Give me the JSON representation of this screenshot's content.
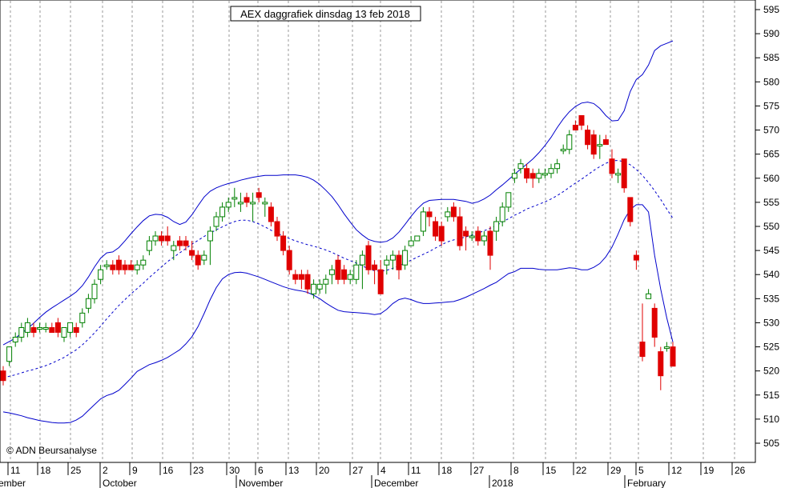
{
  "chart_data": {
    "type": "candlestick",
    "title": "AEX daggrafiek dinsdag 13 feb 2018",
    "copyright": "© ADN Beursanalyse",
    "ylim": [
      500,
      598
    ],
    "y_ticks": [
      505,
      510,
      515,
      520,
      525,
      530,
      535,
      540,
      545,
      550,
      555,
      560,
      565,
      570,
      575,
      580,
      585,
      590,
      595
    ],
    "x_tick_labels": [
      "11",
      "18",
      "25",
      "2",
      "9",
      "16",
      "23",
      "30",
      "6",
      "13",
      "20",
      "27",
      "4",
      "11",
      "18",
      "27",
      "8",
      "15",
      "22",
      "29",
      "5",
      "12",
      "19",
      "26"
    ],
    "month_labels": [
      "ember",
      "October",
      "November",
      "December",
      "2018",
      "February"
    ],
    "colors": {
      "up": "#008000",
      "down": "#e00000",
      "band": "#0000cc",
      "grid": "#999999"
    },
    "candles": [
      {
        "o": 520,
        "h": 521,
        "l": 517,
        "c": 518
      },
      {
        "o": 522,
        "h": 525,
        "l": 521,
        "c": 525
      },
      {
        "o": 526,
        "h": 528,
        "l": 525,
        "c": 527
      },
      {
        "o": 527,
        "h": 530,
        "l": 526,
        "c": 529
      },
      {
        "o": 528,
        "h": 531,
        "l": 527,
        "c": 530
      },
      {
        "o": 529,
        "h": 530,
        "l": 527,
        "c": 528
      },
      {
        "o": 529,
        "h": 530,
        "l": 528,
        "c": 529
      },
      {
        "o": 529,
        "h": 530,
        "l": 528,
        "c": 529
      },
      {
        "o": 529,
        "h": 530,
        "l": 528,
        "c": 528
      },
      {
        "o": 530,
        "h": 531,
        "l": 527,
        "c": 528
      },
      {
        "o": 527,
        "h": 529,
        "l": 526,
        "c": 529
      },
      {
        "o": 528,
        "h": 530,
        "l": 527,
        "c": 530
      },
      {
        "o": 529,
        "h": 530,
        "l": 527,
        "c": 528
      },
      {
        "o": 530,
        "h": 533,
        "l": 529,
        "c": 532
      },
      {
        "o": 533,
        "h": 536,
        "l": 532,
        "c": 535
      },
      {
        "o": 535,
        "h": 539,
        "l": 534,
        "c": 538
      },
      {
        "o": 539,
        "h": 542,
        "l": 538,
        "c": 541
      },
      {
        "o": 542,
        "h": 543,
        "l": 541,
        "c": 542
      },
      {
        "o": 542,
        "h": 543,
        "l": 540,
        "c": 541
      },
      {
        "o": 543,
        "h": 544,
        "l": 540,
        "c": 541
      },
      {
        "o": 542,
        "h": 543,
        "l": 540,
        "c": 541
      },
      {
        "o": 542,
        "h": 543,
        "l": 541,
        "c": 541
      },
      {
        "o": 541,
        "h": 543,
        "l": 540,
        "c": 542
      },
      {
        "o": 542,
        "h": 544,
        "l": 541,
        "c": 543
      },
      {
        "o": 545,
        "h": 548,
        "l": 544,
        "c": 547
      },
      {
        "o": 547,
        "h": 549,
        "l": 546,
        "c": 548
      },
      {
        "o": 548,
        "h": 549,
        "l": 546,
        "c": 547
      },
      {
        "o": 548,
        "h": 550,
        "l": 546,
        "c": 547
      },
      {
        "o": 545,
        "h": 547,
        "l": 543,
        "c": 546
      },
      {
        "o": 547,
        "h": 548,
        "l": 545,
        "c": 546
      },
      {
        "o": 547,
        "h": 548,
        "l": 545,
        "c": 546
      },
      {
        "o": 545,
        "h": 547,
        "l": 543,
        "c": 544
      },
      {
        "o": 544,
        "h": 545,
        "l": 541,
        "c": 542
      },
      {
        "o": 543,
        "h": 545,
        "l": 542,
        "c": 544
      },
      {
        "o": 547,
        "h": 550,
        "l": 542,
        "c": 549
      },
      {
        "o": 550,
        "h": 553,
        "l": 549,
        "c": 552
      },
      {
        "o": 552,
        "h": 555,
        "l": 551,
        "c": 554
      },
      {
        "o": 554,
        "h": 556,
        "l": 553,
        "c": 555
      },
      {
        "o": 556,
        "h": 558,
        "l": 554,
        "c": 556
      },
      {
        "o": 555,
        "h": 557,
        "l": 553,
        "c": 555
      },
      {
        "o": 556,
        "h": 557,
        "l": 554,
        "c": 555
      },
      {
        "o": 555,
        "h": 557,
        "l": 551,
        "c": 555
      },
      {
        "o": 557,
        "h": 558,
        "l": 555,
        "c": 556
      },
      {
        "o": 555,
        "h": 556,
        "l": 552,
        "c": 555
      },
      {
        "o": 554,
        "h": 555,
        "l": 550,
        "c": 551
      },
      {
        "o": 551,
        "h": 552,
        "l": 547,
        "c": 548
      },
      {
        "o": 548,
        "h": 549,
        "l": 544,
        "c": 545
      },
      {
        "o": 545,
        "h": 546,
        "l": 540,
        "c": 541
      },
      {
        "o": 540,
        "h": 541,
        "l": 538,
        "c": 539
      },
      {
        "o": 540,
        "h": 541,
        "l": 537,
        "c": 539
      },
      {
        "o": 540,
        "h": 541,
        "l": 536,
        "c": 537
      },
      {
        "o": 536,
        "h": 539,
        "l": 535,
        "c": 538
      },
      {
        "o": 537,
        "h": 539,
        "l": 536,
        "c": 538
      },
      {
        "o": 538,
        "h": 540,
        "l": 536,
        "c": 539
      },
      {
        "o": 540,
        "h": 542,
        "l": 538,
        "c": 541
      },
      {
        "o": 543,
        "h": 544,
        "l": 538,
        "c": 539
      },
      {
        "o": 541,
        "h": 542,
        "l": 538,
        "c": 539
      },
      {
        "o": 539,
        "h": 541,
        "l": 538,
        "c": 540
      },
      {
        "o": 539,
        "h": 543,
        "l": 538,
        "c": 542
      },
      {
        "o": 542,
        "h": 545,
        "l": 537,
        "c": 544
      },
      {
        "o": 546,
        "h": 547,
        "l": 540,
        "c": 541
      },
      {
        "o": 542,
        "h": 543,
        "l": 538,
        "c": 541
      },
      {
        "o": 541,
        "h": 543,
        "l": 536,
        "c": 536
      },
      {
        "o": 542,
        "h": 544,
        "l": 540,
        "c": 543
      },
      {
        "o": 543,
        "h": 545,
        "l": 541,
        "c": 544
      },
      {
        "o": 544,
        "h": 545,
        "l": 539,
        "c": 541
      },
      {
        "o": 542,
        "h": 546,
        "l": 541,
        "c": 545
      },
      {
        "o": 546,
        "h": 548,
        "l": 546,
        "c": 547
      },
      {
        "o": 547,
        "h": 548,
        "l": 547,
        "c": 548
      },
      {
        "o": 549,
        "h": 554,
        "l": 548,
        "c": 553
      },
      {
        "o": 553,
        "h": 554,
        "l": 550,
        "c": 552
      },
      {
        "o": 551,
        "h": 552,
        "l": 547,
        "c": 548
      },
      {
        "o": 550,
        "h": 551,
        "l": 546,
        "c": 547
      },
      {
        "o": 552,
        "h": 554,
        "l": 551,
        "c": 553
      },
      {
        "o": 554,
        "h": 555,
        "l": 551,
        "c": 552
      },
      {
        "o": 552,
        "h": 554,
        "l": 545,
        "c": 546
      },
      {
        "o": 549,
        "h": 550,
        "l": 545,
        "c": 548
      },
      {
        "o": 548,
        "h": 549,
        "l": 547,
        "c": 548
      },
      {
        "o": 549,
        "h": 550,
        "l": 546,
        "c": 547
      },
      {
        "o": 547,
        "h": 549,
        "l": 546,
        "c": 548
      },
      {
        "o": 549,
        "h": 550,
        "l": 541,
        "c": 544
      },
      {
        "o": 549,
        "h": 552,
        "l": 547,
        "c": 551
      },
      {
        "o": 551,
        "h": 555,
        "l": 550,
        "c": 554
      },
      {
        "o": 554,
        "h": 557,
        "l": 553,
        "c": 557
      },
      {
        "o": 560,
        "h": 562,
        "l": 559,
        "c": 561
      },
      {
        "o": 562,
        "h": 564,
        "l": 561,
        "c": 563
      },
      {
        "o": 562,
        "h": 563,
        "l": 559,
        "c": 560
      },
      {
        "o": 561,
        "h": 562,
        "l": 558,
        "c": 560
      },
      {
        "o": 560,
        "h": 562,
        "l": 559,
        "c": 561
      },
      {
        "o": 561,
        "h": 562,
        "l": 560,
        "c": 561
      },
      {
        "o": 561,
        "h": 563,
        "l": 560,
        "c": 562
      },
      {
        "o": 562,
        "h": 564,
        "l": 561,
        "c": 563
      },
      {
        "o": 566,
        "h": 567,
        "l": 565,
        "c": 566
      },
      {
        "o": 566,
        "h": 570,
        "l": 565,
        "c": 569
      },
      {
        "o": 571,
        "h": 572,
        "l": 570,
        "c": 570
      },
      {
        "o": 573,
        "h": 573,
        "l": 570,
        "c": 571
      },
      {
        "o": 570,
        "h": 571,
        "l": 566,
        "c": 567
      },
      {
        "o": 569,
        "h": 570,
        "l": 564,
        "c": 565
      },
      {
        "o": 567,
        "h": 569,
        "l": 564,
        "c": 567
      },
      {
        "o": 568,
        "h": 569,
        "l": 567,
        "c": 567
      },
      {
        "o": 564,
        "h": 566,
        "l": 560,
        "c": 561
      },
      {
        "o": 561,
        "h": 562,
        "l": 559,
        "c": 561
      },
      {
        "o": 564,
        "h": 564,
        "l": 557,
        "c": 558
      },
      {
        "o": 556,
        "h": 556,
        "l": 550,
        "c": 551
      },
      {
        "o": 544,
        "h": 545,
        "l": 541,
        "c": 543
      },
      {
        "o": 526,
        "h": 534,
        "l": 522,
        "c": 523
      },
      {
        "o": 535,
        "h": 537,
        "l": 535,
        "c": 536
      },
      {
        "o": 533,
        "h": 534,
        "l": 525,
        "c": 527
      },
      {
        "o": 524,
        "h": 525,
        "l": 516,
        "c": 519
      },
      {
        "o": 525,
        "h": 526,
        "l": 524,
        "c": 525
      },
      {
        "o": 525,
        "h": 526,
        "l": 521,
        "c": 521
      }
    ],
    "mid_band": [
      518.5,
      518.9,
      519.2,
      519.6,
      520.0,
      520.3,
      520.7,
      521.1,
      521.6,
      522.2,
      522.8,
      523.6,
      524.4,
      525.4,
      526.6,
      527.9,
      529.3,
      530.8,
      532.2,
      533.6,
      534.8,
      536.0,
      537.1,
      538.2,
      539.4,
      540.5,
      541.6,
      542.7,
      543.6,
      544.5,
      545.4,
      546.3,
      547.1,
      547.9,
      548.6,
      549.3,
      549.9,
      550.5,
      551.0,
      551.3,
      551.3,
      551.0,
      550.5,
      549.9,
      549.2,
      548.6,
      548.0,
      547.5,
      547.0,
      546.6,
      546.2,
      545.9,
      545.5,
      545.1,
      544.6,
      544.0,
      543.4,
      542.9,
      542.4,
      541.8,
      541.2,
      540.8,
      540.7,
      540.9,
      541.3,
      541.8,
      542.4,
      543.0,
      543.6,
      544.2,
      544.8,
      545.5,
      546.2,
      546.8,
      547.2,
      547.5,
      547.8,
      548.2,
      548.6,
      549.1,
      549.6,
      550.2,
      550.9,
      551.6,
      552.3,
      552.9,
      553.6,
      554.1,
      554.6,
      555.1,
      555.7,
      556.4,
      557.2,
      558.1,
      559.0,
      559.8,
      560.7,
      561.6,
      562.4,
      563.1,
      563.6,
      563.7,
      563.4,
      562.8,
      561.8,
      560.6,
      559.1,
      557.4,
      555.6,
      553.6,
      551.7
    ],
    "upper_band": [
      525.4,
      526.1,
      526.8,
      527.8,
      528.8,
      529.9,
      531.1,
      532.2,
      533.1,
      533.9,
      534.7,
      535.5,
      536.4,
      537.7,
      539.5,
      541.6,
      543.4,
      544.5,
      544.7,
      545.6,
      547.0,
      548.5,
      549.9,
      551.2,
      552.2,
      552.5,
      552.4,
      551.9,
      551.0,
      550.4,
      550.9,
      552.4,
      554.3,
      556.1,
      557.3,
      558.0,
      558.5,
      558.9,
      559.2,
      559.6,
      559.9,
      560.2,
      560.4,
      560.6,
      560.6,
      560.6,
      560.7,
      560.7,
      560.7,
      560.5,
      560.2,
      559.6,
      558.7,
      557.5,
      556.2,
      554.5,
      552.6,
      550.9,
      549.3,
      548.2,
      547.3,
      546.9,
      546.7,
      546.9,
      547.6,
      548.8,
      550.4,
      552.1,
      553.6,
      554.8,
      555.4,
      555.5,
      555.6,
      555.6,
      555.6,
      555.4,
      555.2,
      554.8,
      555.1,
      555.7,
      556.5,
      557.6,
      558.6,
      559.7,
      560.8,
      561.9,
      562.9,
      564.0,
      565.3,
      566.8,
      568.5,
      570.5,
      572.3,
      573.8,
      574.9,
      575.6,
      575.8,
      575.5,
      574.5,
      573.0,
      571.9,
      572.0,
      574.0,
      578.0,
      580.5,
      581.5,
      583.5,
      586.5,
      587.5,
      588.0,
      588.5
    ],
    "lower_band": [
      511.5,
      511.3,
      511.0,
      510.7,
      510.3,
      510.0,
      509.7,
      509.5,
      509.3,
      509.2,
      509.2,
      509.3,
      509.8,
      510.6,
      511.8,
      513.0,
      514.2,
      514.9,
      515.3,
      516.0,
      517.2,
      518.5,
      519.9,
      520.6,
      521.3,
      521.7,
      522.2,
      522.8,
      523.6,
      524.4,
      525.6,
      527.1,
      529.2,
      531.9,
      534.8,
      537.3,
      539.1,
      540.0,
      540.4,
      540.5,
      540.3,
      539.9,
      539.5,
      539.0,
      538.5,
      538.0,
      537.5,
      537.1,
      536.8,
      536.6,
      536.3,
      535.7,
      535.0,
      534.1,
      533.3,
      532.6,
      532.3,
      532.2,
      532.1,
      532.0,
      531.9,
      531.7,
      531.9,
      532.8,
      534.0,
      534.8,
      535.1,
      534.8,
      534.3,
      534.0,
      534.0,
      534.1,
      534.2,
      534.3,
      534.4,
      534.8,
      535.3,
      535.9,
      536.5,
      537.1,
      537.8,
      538.4,
      539.3,
      540.2,
      540.6,
      541.3,
      541.3,
      541.3,
      541.1,
      541.0,
      541.0,
      541.0,
      541.2,
      541.4,
      541.3,
      541.0,
      541.0,
      541.5,
      542.3,
      543.7,
      545.7,
      548.4,
      551.4,
      553.5,
      554.5,
      554.5,
      553.0,
      544.0,
      537.0,
      531.0,
      526.0
    ]
  }
}
